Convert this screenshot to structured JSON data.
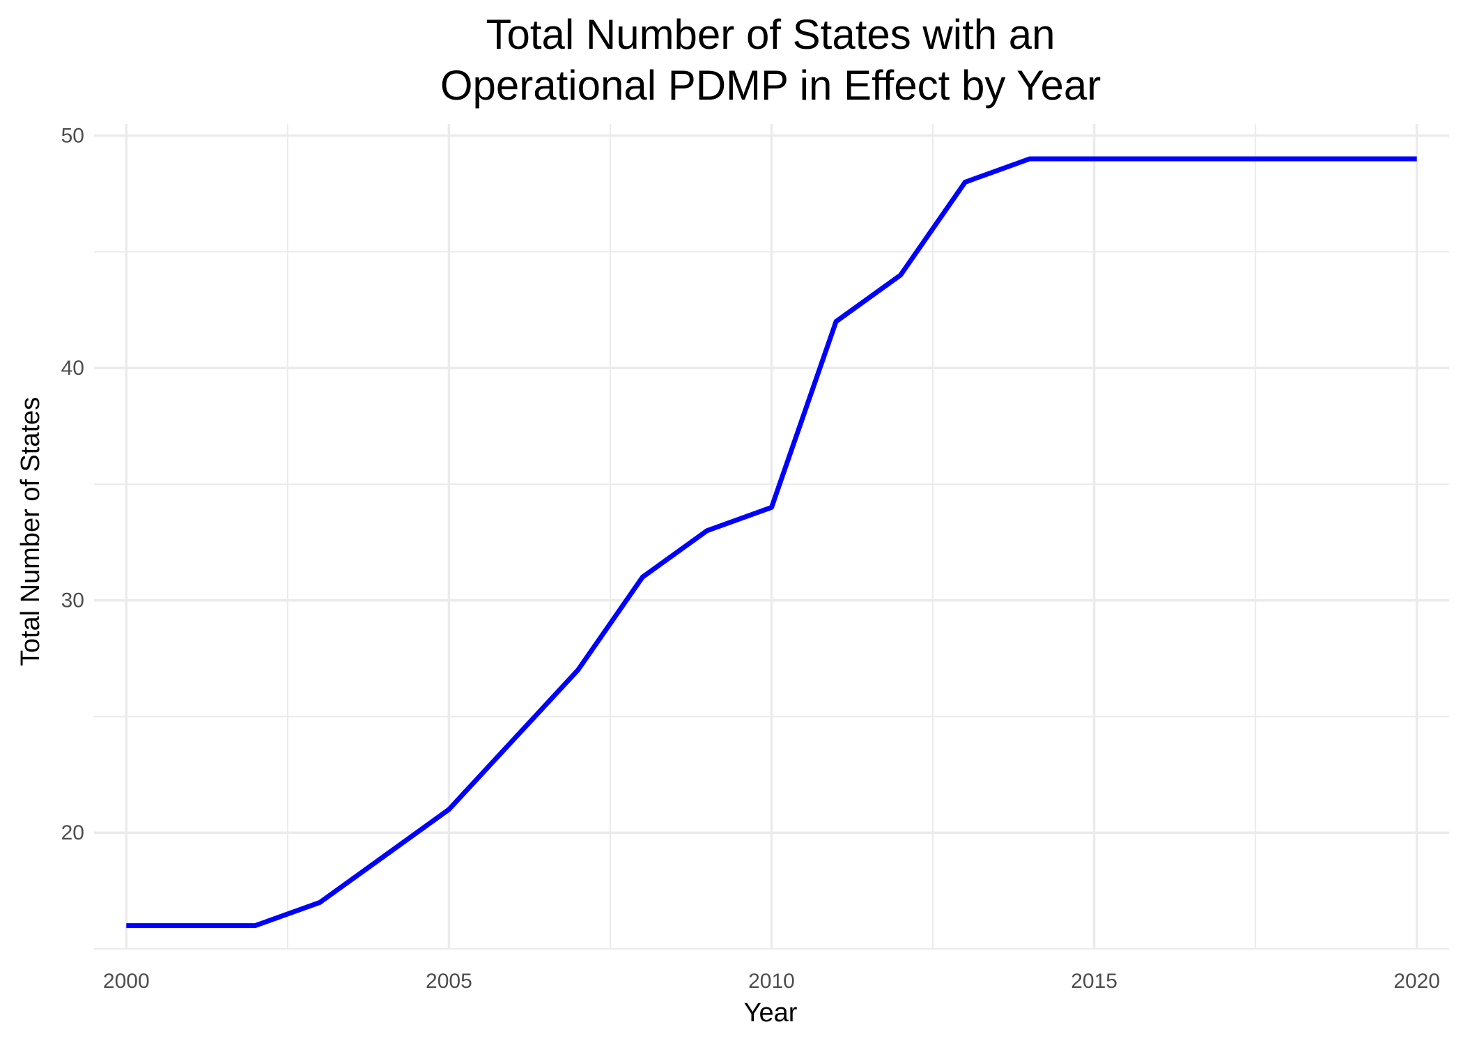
{
  "chart_data": {
    "type": "line",
    "title_lines": [
      "Total Number of States with an",
      "Operational PDMP in Effect by Year"
    ],
    "xlabel": "Year",
    "ylabel": "Total Number of States",
    "xlim": [
      1999.5,
      2020.5
    ],
    "ylim": [
      15,
      50.5
    ],
    "x_ticks": [
      2000,
      2005,
      2010,
      2015,
      2020
    ],
    "x_minor_ticks": [
      2002.5,
      2007.5,
      2012.5,
      2017.5
    ],
    "y_ticks": [
      20,
      30,
      40,
      50
    ],
    "y_minor_ticks": [
      15,
      25,
      35,
      45
    ],
    "grid": true,
    "series": [
      {
        "color": "#0000ff",
        "x": [
          2000,
          2001,
          2002,
          2003,
          2004,
          2005,
          2006,
          2007,
          2008,
          2009,
          2010,
          2011,
          2012,
          2013,
          2014,
          2015,
          2016,
          2017,
          2018,
          2019,
          2020
        ],
        "values": [
          16,
          16,
          16,
          17,
          19,
          21,
          24,
          27,
          31,
          33,
          34,
          42,
          44,
          48,
          49,
          49,
          49,
          49,
          49,
          49,
          49
        ]
      }
    ]
  }
}
